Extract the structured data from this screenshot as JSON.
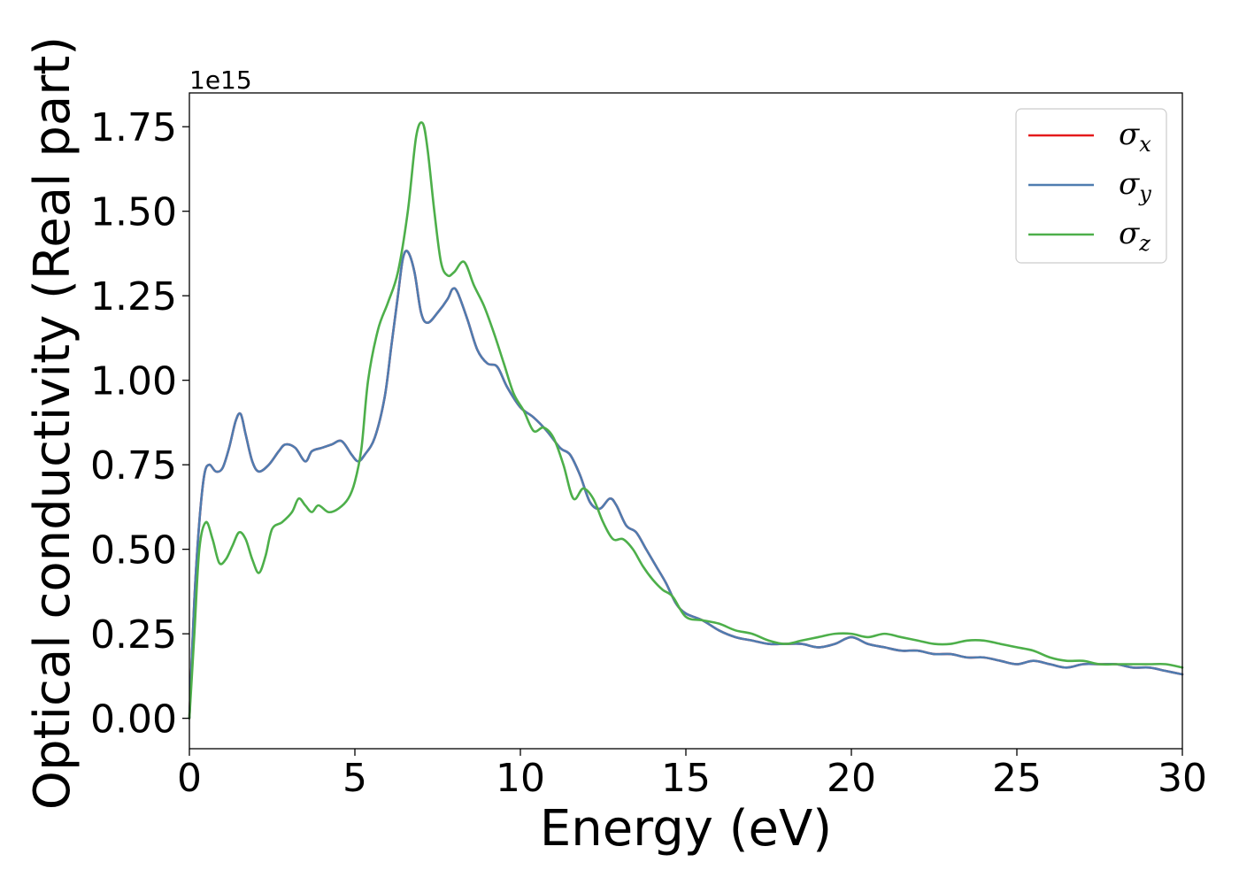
{
  "chart_data": {
    "type": "line",
    "xlabel": "Energy (eV)",
    "ylabel": "Optical conductivity (Real part)",
    "y_offset_label": "1e15",
    "xlim": [
      0,
      30
    ],
    "ylim": [
      -0.09,
      1.85
    ],
    "x_ticks": [
      0,
      5,
      10,
      15,
      20,
      25,
      30
    ],
    "x_tick_labels": [
      "0",
      "5",
      "10",
      "15",
      "20",
      "25",
      "30"
    ],
    "y_ticks": [
      0.0,
      0.25,
      0.5,
      0.75,
      1.0,
      1.25,
      1.5,
      1.75
    ],
    "y_tick_labels": [
      "0.00",
      "0.25",
      "0.50",
      "0.75",
      "1.00",
      "1.25",
      "1.50",
      "1.75"
    ],
    "grid": false,
    "legend_position": "top-right",
    "series": [
      {
        "name": "σ",
        "sub": "x",
        "color": "#e41a1c",
        "x": [
          0,
          0.15,
          0.3,
          0.45,
          0.6,
          0.8,
          1.0,
          1.2,
          1.4,
          1.55,
          1.7,
          1.9,
          2.1,
          2.4,
          2.7,
          2.9,
          3.2,
          3.5,
          3.7,
          4.0,
          4.3,
          4.6,
          4.9,
          5.1,
          5.3,
          5.6,
          5.9,
          6.1,
          6.3,
          6.45,
          6.6,
          6.8,
          7.0,
          7.2,
          7.5,
          7.8,
          7.95,
          8.1,
          8.4,
          8.7,
          9.0,
          9.3,
          9.6,
          10.0,
          10.4,
          10.8,
          11.2,
          11.5,
          11.8,
          12.1,
          12.4,
          12.7,
          12.9,
          13.2,
          13.5,
          13.8,
          14.1,
          14.4,
          14.7,
          15.0,
          15.5,
          16.0,
          16.5,
          17.0,
          17.5,
          18.0,
          18.5,
          19.0,
          19.5,
          20.0,
          20.5,
          21.0,
          21.5,
          22.0,
          22.5,
          23.0,
          23.5,
          24.0,
          24.5,
          25.0,
          25.5,
          26.0,
          26.5,
          27.0,
          27.5,
          28.0,
          28.5,
          29.0,
          29.5,
          30.0
        ],
        "y": [
          0.0,
          0.35,
          0.58,
          0.72,
          0.75,
          0.73,
          0.74,
          0.8,
          0.88,
          0.9,
          0.84,
          0.76,
          0.73,
          0.75,
          0.79,
          0.81,
          0.8,
          0.76,
          0.79,
          0.8,
          0.81,
          0.82,
          0.78,
          0.76,
          0.78,
          0.83,
          0.95,
          1.1,
          1.25,
          1.36,
          1.38,
          1.32,
          1.2,
          1.17,
          1.2,
          1.24,
          1.27,
          1.26,
          1.18,
          1.09,
          1.05,
          1.04,
          0.98,
          0.92,
          0.89,
          0.85,
          0.8,
          0.78,
          0.72,
          0.64,
          0.62,
          0.65,
          0.63,
          0.57,
          0.55,
          0.5,
          0.45,
          0.4,
          0.34,
          0.31,
          0.29,
          0.26,
          0.24,
          0.23,
          0.22,
          0.22,
          0.22,
          0.21,
          0.22,
          0.24,
          0.22,
          0.21,
          0.2,
          0.2,
          0.19,
          0.19,
          0.18,
          0.18,
          0.17,
          0.16,
          0.17,
          0.16,
          0.15,
          0.16,
          0.16,
          0.16,
          0.15,
          0.15,
          0.14,
          0.13
        ]
      },
      {
        "name": "σ",
        "sub": "y",
        "color": "#4f7cb0",
        "x": [
          0,
          0.15,
          0.3,
          0.45,
          0.6,
          0.8,
          1.0,
          1.2,
          1.4,
          1.55,
          1.7,
          1.9,
          2.1,
          2.4,
          2.7,
          2.9,
          3.2,
          3.5,
          3.7,
          4.0,
          4.3,
          4.6,
          4.9,
          5.1,
          5.3,
          5.6,
          5.9,
          6.1,
          6.3,
          6.45,
          6.6,
          6.8,
          7.0,
          7.2,
          7.5,
          7.8,
          7.95,
          8.1,
          8.4,
          8.7,
          9.0,
          9.3,
          9.6,
          10.0,
          10.4,
          10.8,
          11.2,
          11.5,
          11.8,
          12.1,
          12.4,
          12.7,
          12.9,
          13.2,
          13.5,
          13.8,
          14.1,
          14.4,
          14.7,
          15.0,
          15.5,
          16.0,
          16.5,
          17.0,
          17.5,
          18.0,
          18.5,
          19.0,
          19.5,
          20.0,
          20.5,
          21.0,
          21.5,
          22.0,
          22.5,
          23.0,
          23.5,
          24.0,
          24.5,
          25.0,
          25.5,
          26.0,
          26.5,
          27.0,
          27.5,
          28.0,
          28.5,
          29.0,
          29.5,
          30.0
        ],
        "y": [
          0.0,
          0.35,
          0.58,
          0.72,
          0.75,
          0.73,
          0.74,
          0.8,
          0.88,
          0.9,
          0.84,
          0.76,
          0.73,
          0.75,
          0.79,
          0.81,
          0.8,
          0.76,
          0.79,
          0.8,
          0.81,
          0.82,
          0.78,
          0.76,
          0.78,
          0.83,
          0.95,
          1.1,
          1.25,
          1.36,
          1.38,
          1.32,
          1.2,
          1.17,
          1.2,
          1.24,
          1.27,
          1.26,
          1.18,
          1.09,
          1.05,
          1.04,
          0.98,
          0.92,
          0.89,
          0.85,
          0.8,
          0.78,
          0.72,
          0.64,
          0.62,
          0.65,
          0.63,
          0.57,
          0.55,
          0.5,
          0.45,
          0.4,
          0.34,
          0.31,
          0.29,
          0.26,
          0.24,
          0.23,
          0.22,
          0.22,
          0.22,
          0.21,
          0.22,
          0.24,
          0.22,
          0.21,
          0.2,
          0.2,
          0.19,
          0.19,
          0.18,
          0.18,
          0.17,
          0.16,
          0.17,
          0.16,
          0.15,
          0.16,
          0.16,
          0.16,
          0.15,
          0.15,
          0.14,
          0.13
        ]
      },
      {
        "name": "σ",
        "sub": "z",
        "color": "#4daf4a",
        "x": [
          0,
          0.15,
          0.3,
          0.5,
          0.7,
          0.9,
          1.1,
          1.3,
          1.5,
          1.7,
          1.9,
          2.1,
          2.3,
          2.5,
          2.8,
          3.1,
          3.3,
          3.5,
          3.7,
          3.9,
          4.2,
          4.5,
          4.8,
          5.0,
          5.2,
          5.4,
          5.7,
          6.0,
          6.3,
          6.6,
          6.85,
          7.05,
          7.2,
          7.4,
          7.6,
          7.8,
          8.0,
          8.3,
          8.6,
          8.9,
          9.2,
          9.5,
          9.8,
          10.1,
          10.4,
          10.7,
          11.0,
          11.3,
          11.6,
          11.9,
          12.2,
          12.5,
          12.8,
          13.1,
          13.4,
          13.7,
          14.0,
          14.3,
          14.6,
          15.0,
          15.5,
          16.0,
          16.5,
          17.0,
          17.5,
          18.0,
          18.5,
          19.0,
          19.5,
          20.0,
          20.5,
          21.0,
          21.5,
          22.0,
          22.5,
          23.0,
          23.5,
          24.0,
          24.5,
          25.0,
          25.5,
          26.0,
          26.5,
          27.0,
          27.5,
          28.0,
          28.5,
          29.0,
          29.5,
          30.0
        ],
        "y": [
          0.0,
          0.25,
          0.5,
          0.58,
          0.53,
          0.46,
          0.47,
          0.51,
          0.55,
          0.53,
          0.47,
          0.43,
          0.48,
          0.56,
          0.58,
          0.61,
          0.65,
          0.63,
          0.61,
          0.63,
          0.61,
          0.62,
          0.65,
          0.7,
          0.8,
          1.0,
          1.15,
          1.23,
          1.32,
          1.5,
          1.72,
          1.76,
          1.68,
          1.5,
          1.35,
          1.31,
          1.32,
          1.35,
          1.28,
          1.22,
          1.14,
          1.05,
          0.96,
          0.91,
          0.85,
          0.86,
          0.83,
          0.75,
          0.65,
          0.68,
          0.65,
          0.58,
          0.53,
          0.53,
          0.5,
          0.45,
          0.41,
          0.38,
          0.36,
          0.3,
          0.29,
          0.28,
          0.26,
          0.25,
          0.23,
          0.22,
          0.23,
          0.24,
          0.25,
          0.25,
          0.24,
          0.25,
          0.24,
          0.23,
          0.22,
          0.22,
          0.23,
          0.23,
          0.22,
          0.21,
          0.2,
          0.18,
          0.17,
          0.17,
          0.16,
          0.16,
          0.16,
          0.16,
          0.16,
          0.15
        ]
      }
    ]
  }
}
